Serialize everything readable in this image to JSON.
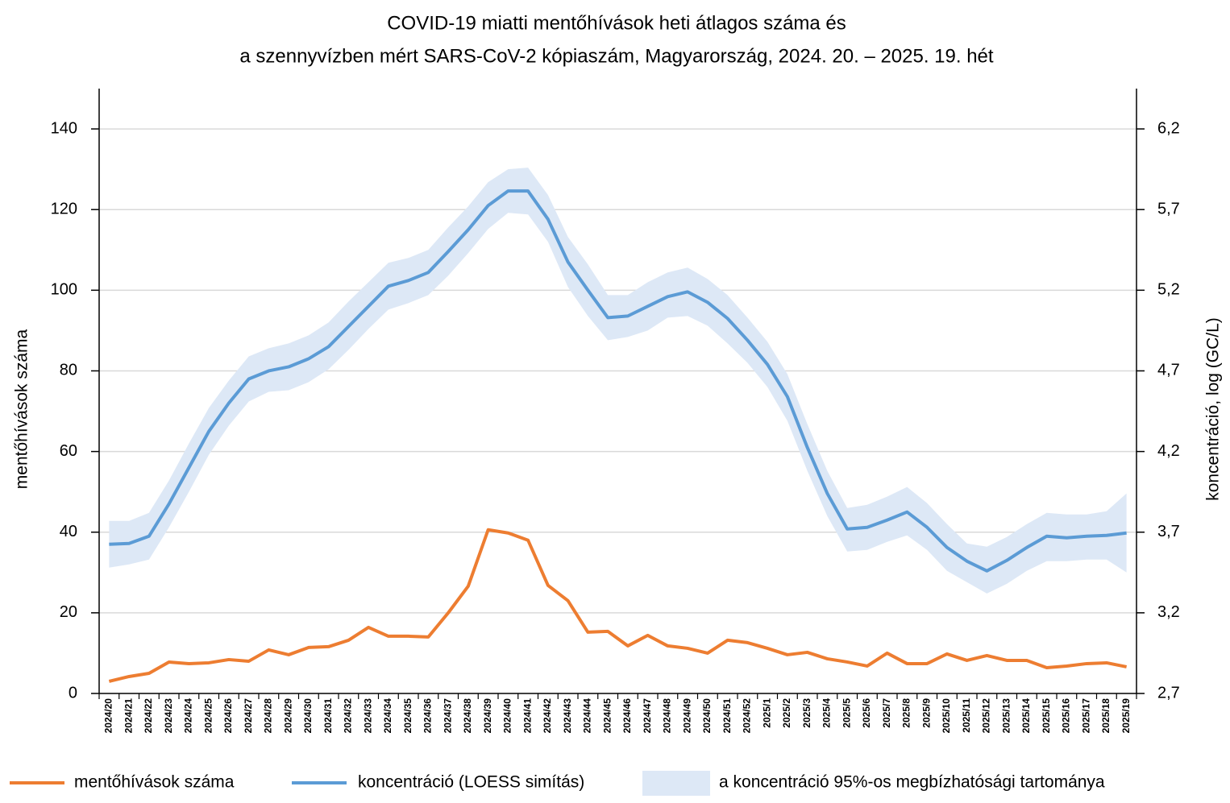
{
  "chart_data": {
    "type": "line",
    "title": [
      "COVID-19 miatti mentőhívások heti átlagos száma és",
      "a szennyvízben mért SARS-CoV-2 kópiaszám, Magyarország, 2024. 20. – 2025. 19. hét"
    ],
    "ylabel": "mentőhívások száma",
    "y2label": "koncentráció, log (GC/L)",
    "categories": [
      "2024/20",
      "2024/21",
      "2024/22",
      "2024/23",
      "2024/24",
      "2024/25",
      "2024/26",
      "2024/27",
      "2024/28",
      "2024/29",
      "2024/30",
      "2024/31",
      "2024/32",
      "2024/33",
      "2024/34",
      "2024/35",
      "2024/36",
      "2024/37",
      "2024/38",
      "2024/39",
      "2024/40",
      "2024/41",
      "2024/42",
      "2024/43",
      "2024/44",
      "2024/45",
      "2024/46",
      "2024/47",
      "2024/48",
      "2024/49",
      "2024/50",
      "2024/51",
      "2024/52",
      "2025/1",
      "2025/2",
      "2025/3",
      "2025/4",
      "2025/5",
      "2025/6",
      "2025/7",
      "2025/8",
      "2025/9",
      "2025/10",
      "2025/11",
      "2025/12",
      "2025/13",
      "2025/14",
      "2025/15",
      "2025/16",
      "2025/17",
      "2025/18",
      "2025/19"
    ],
    "series": [
      {
        "name": "mentőhívások száma",
        "color": "#ed7d31",
        "values": [
          3.0,
          4.2,
          5.0,
          7.8,
          7.4,
          7.6,
          8.4,
          8.0,
          10.8,
          9.6,
          11.4,
          11.6,
          13.2,
          16.4,
          14.2,
          14.2,
          14.0,
          20.0,
          26.6,
          40.6,
          39.8,
          38.0,
          26.8,
          23.0,
          15.2,
          15.4,
          11.8,
          14.4,
          11.8,
          11.2,
          10.0,
          13.2,
          12.6,
          11.2,
          9.6,
          10.2,
          8.6,
          7.8,
          6.8,
          10.0,
          7.4,
          7.4,
          9.8,
          8.2,
          9.4,
          8.2,
          8.2,
          6.4,
          6.8,
          7.4,
          7.6,
          6.6
        ]
      },
      {
        "name": "koncentráció (LOESS simítás)",
        "color": "#5b9bd5",
        "axis": "y2",
        "values": [
          3.625,
          3.63,
          3.675,
          3.875,
          4.1,
          4.325,
          4.5,
          4.65,
          4.7,
          4.725,
          4.775,
          4.85,
          4.975,
          5.1,
          5.225,
          5.26,
          5.31,
          5.44,
          5.575,
          5.725,
          5.815,
          5.815,
          5.64,
          5.375,
          5.2,
          5.03,
          5.04,
          5.1,
          5.16,
          5.19,
          5.125,
          5.025,
          4.89,
          4.74,
          4.54,
          4.225,
          3.94,
          3.72,
          3.73,
          3.775,
          3.825,
          3.73,
          3.605,
          3.52,
          3.46,
          3.525,
          3.605,
          3.675,
          3.665,
          3.675,
          3.68,
          3.695
        ]
      }
    ],
    "band": {
      "name": "a koncentráció 95%-os megbízhatósági tartománya",
      "color": "#dde8f6",
      "axis": "y2",
      "upper": [
        3.77,
        3.77,
        3.82,
        4.02,
        4.25,
        4.47,
        4.64,
        4.79,
        4.84,
        4.87,
        4.92,
        5.0,
        5.13,
        5.25,
        5.37,
        5.4,
        5.45,
        5.59,
        5.72,
        5.87,
        5.95,
        5.96,
        5.79,
        5.53,
        5.36,
        5.17,
        5.17,
        5.25,
        5.31,
        5.34,
        5.27,
        5.17,
        5.03,
        4.88,
        4.68,
        4.37,
        4.08,
        3.85,
        3.87,
        3.92,
        3.98,
        3.88,
        3.75,
        3.63,
        3.61,
        3.67,
        3.75,
        3.82,
        3.81,
        3.81,
        3.83,
        3.94
      ],
      "lower": [
        3.48,
        3.5,
        3.53,
        3.73,
        3.95,
        4.18,
        4.36,
        4.51,
        4.57,
        4.58,
        4.63,
        4.71,
        4.83,
        4.96,
        5.08,
        5.12,
        5.17,
        5.29,
        5.43,
        5.58,
        5.68,
        5.67,
        5.5,
        5.22,
        5.04,
        4.89,
        4.91,
        4.95,
        5.03,
        5.04,
        4.98,
        4.87,
        4.75,
        4.6,
        4.39,
        4.08,
        3.8,
        3.58,
        3.59,
        3.64,
        3.68,
        3.59,
        3.46,
        3.39,
        3.32,
        3.38,
        3.46,
        3.52,
        3.52,
        3.53,
        3.53,
        3.45
      ]
    },
    "ylim": [
      0,
      150
    ],
    "yticks": [
      0,
      20,
      40,
      60,
      80,
      100,
      120,
      140
    ],
    "y2lim": [
      2.7,
      6.45
    ],
    "y2ticks": [
      {
        "value": 2.7,
        "label": "2,7"
      },
      {
        "value": 3.2,
        "label": "3,2"
      },
      {
        "value": 3.7,
        "label": "3,7"
      },
      {
        "value": 4.2,
        "label": "4,2"
      },
      {
        "value": 4.7,
        "label": "4,7"
      },
      {
        "value": 5.2,
        "label": "5,2"
      },
      {
        "value": 5.7,
        "label": "5,7"
      },
      {
        "value": 6.2,
        "label": "6,2"
      }
    ],
    "grid": true
  }
}
